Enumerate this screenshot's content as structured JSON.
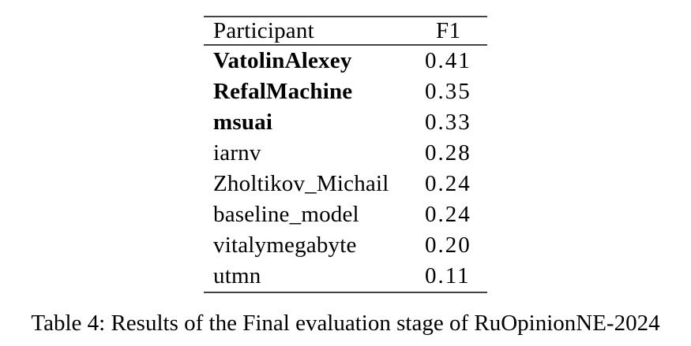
{
  "table": {
    "columns": [
      {
        "label": "Participant"
      },
      {
        "label": "F1"
      }
    ],
    "rows": [
      {
        "participant": "VatolinAlexey",
        "f1": "0.41",
        "bold": true
      },
      {
        "participant": "RefalMachine",
        "f1": "0.35",
        "bold": true
      },
      {
        "participant": "msuai",
        "f1": "0.33",
        "bold": true
      },
      {
        "participant": "iarnv",
        "f1": "0.28",
        "bold": false
      },
      {
        "participant": "Zholtikov_Michail",
        "f1": "0.24",
        "bold": false
      },
      {
        "participant": "baseline_model",
        "f1": "0.24",
        "bold": false
      },
      {
        "participant": "vitalymegabyte",
        "f1": "0.20",
        "bold": false
      },
      {
        "participant": "utmn",
        "f1": "0.11",
        "bold": false
      }
    ]
  },
  "caption": "Table 4: Results of the Final evaluation stage of RuOpinionNE-2024",
  "colors": {
    "background": "#ffffff",
    "text": "#000000",
    "rule": "#444444"
  }
}
